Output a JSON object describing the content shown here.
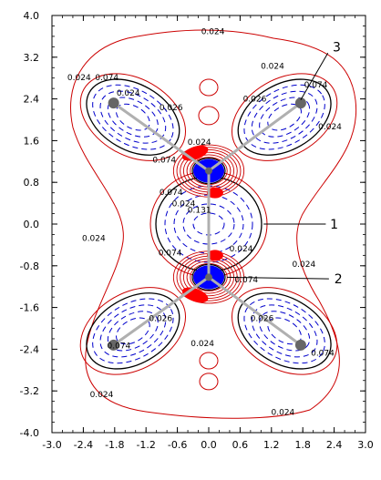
{
  "chart_data": {
    "type": "contour",
    "title": "",
    "xlabel": "",
    "ylabel": "",
    "xlim": [
      -3.0,
      3.0
    ],
    "ylim": [
      -4.0,
      4.0
    ],
    "x_ticks": [
      "-3.0",
      "-2.4",
      "-1.8",
      "-1.2",
      "-0.6",
      "0.0",
      "0.6",
      "1.2",
      "1.8",
      "2.4",
      "3.0"
    ],
    "y_ticks": [
      "4.0",
      "3.2",
      "2.4",
      "1.6",
      "0.8",
      "0.0",
      "-0.8",
      "-1.6",
      "-2.4",
      "-3.2",
      "-4.0"
    ],
    "contour_labels": [
      {
        "text": "0.024",
        "x": 0.08,
        "y": 3.64
      },
      {
        "text": "0.024",
        "x": -2.48,
        "y": 2.76
      },
      {
        "text": "0.074",
        "x": -1.95,
        "y": 2.76
      },
      {
        "text": "0.024",
        "x": -1.54,
        "y": 2.46
      },
      {
        "text": "0.026",
        "x": -0.72,
        "y": 2.18
      },
      {
        "text": "0.024",
        "x": 1.22,
        "y": 2.98
      },
      {
        "text": "0.026",
        "x": 0.88,
        "y": 2.35
      },
      {
        "text": "0.074",
        "x": 2.05,
        "y": 2.62
      },
      {
        "text": "0.024",
        "x": 2.32,
        "y": 1.82
      },
      {
        "text": "0.024",
        "x": -0.18,
        "y": 1.52
      },
      {
        "text": "0.074",
        "x": -0.85,
        "y": 1.18
      },
      {
        "text": "0.074",
        "x": -0.72,
        "y": 0.56
      },
      {
        "text": "0.024",
        "x": -0.48,
        "y": 0.34
      },
      {
        "text": "0.131",
        "x": -0.18,
        "y": 0.22
      },
      {
        "text": "0.024",
        "x": -2.2,
        "y": -0.32
      },
      {
        "text": "0.024",
        "x": 1.82,
        "y": -0.82
      },
      {
        "text": "0.074",
        "x": -0.74,
        "y": -0.6
      },
      {
        "text": "0.024",
        "x": 0.62,
        "y": -0.52
      },
      {
        "text": "0.074",
        "x": 0.72,
        "y": -1.12
      },
      {
        "text": "0.026",
        "x": -0.92,
        "y": -1.86
      },
      {
        "text": "0.026",
        "x": 1.02,
        "y": -1.86
      },
      {
        "text": "0.024",
        "x": -0.12,
        "y": -2.34
      },
      {
        "text": "0.074",
        "x": -1.72,
        "y": -2.38
      },
      {
        "text": "0.074",
        "x": 2.18,
        "y": -2.52
      },
      {
        "text": "0.024",
        "x": -2.05,
        "y": -3.32
      },
      {
        "text": "0.024",
        "x": 1.42,
        "y": -3.66
      }
    ],
    "annotations": [
      {
        "text": "3",
        "x": 2.45,
        "y": 3.4
      },
      {
        "text": "1",
        "x": 2.4,
        "y": 0.0
      },
      {
        "text": "2",
        "x": 2.48,
        "y": -1.05
      }
    ],
    "atoms": [
      {
        "x": -1.82,
        "y": 2.32
      },
      {
        "x": 1.76,
        "y": 2.32
      },
      {
        "x": -1.82,
        "y": -2.32
      },
      {
        "x": 1.76,
        "y": -2.32
      },
      {
        "x": 0.0,
        "y": 1.02
      },
      {
        "x": 0.0,
        "y": -1.02
      }
    ],
    "colors": {
      "positive_contours": "#cc0000",
      "negative_contours": "#0000cc",
      "zero_contour": "#000000",
      "bonds": "#b0b0b0",
      "atoms": "#666666",
      "density_positive": "#ff0000",
      "density_negative": "#0000ff"
    }
  }
}
